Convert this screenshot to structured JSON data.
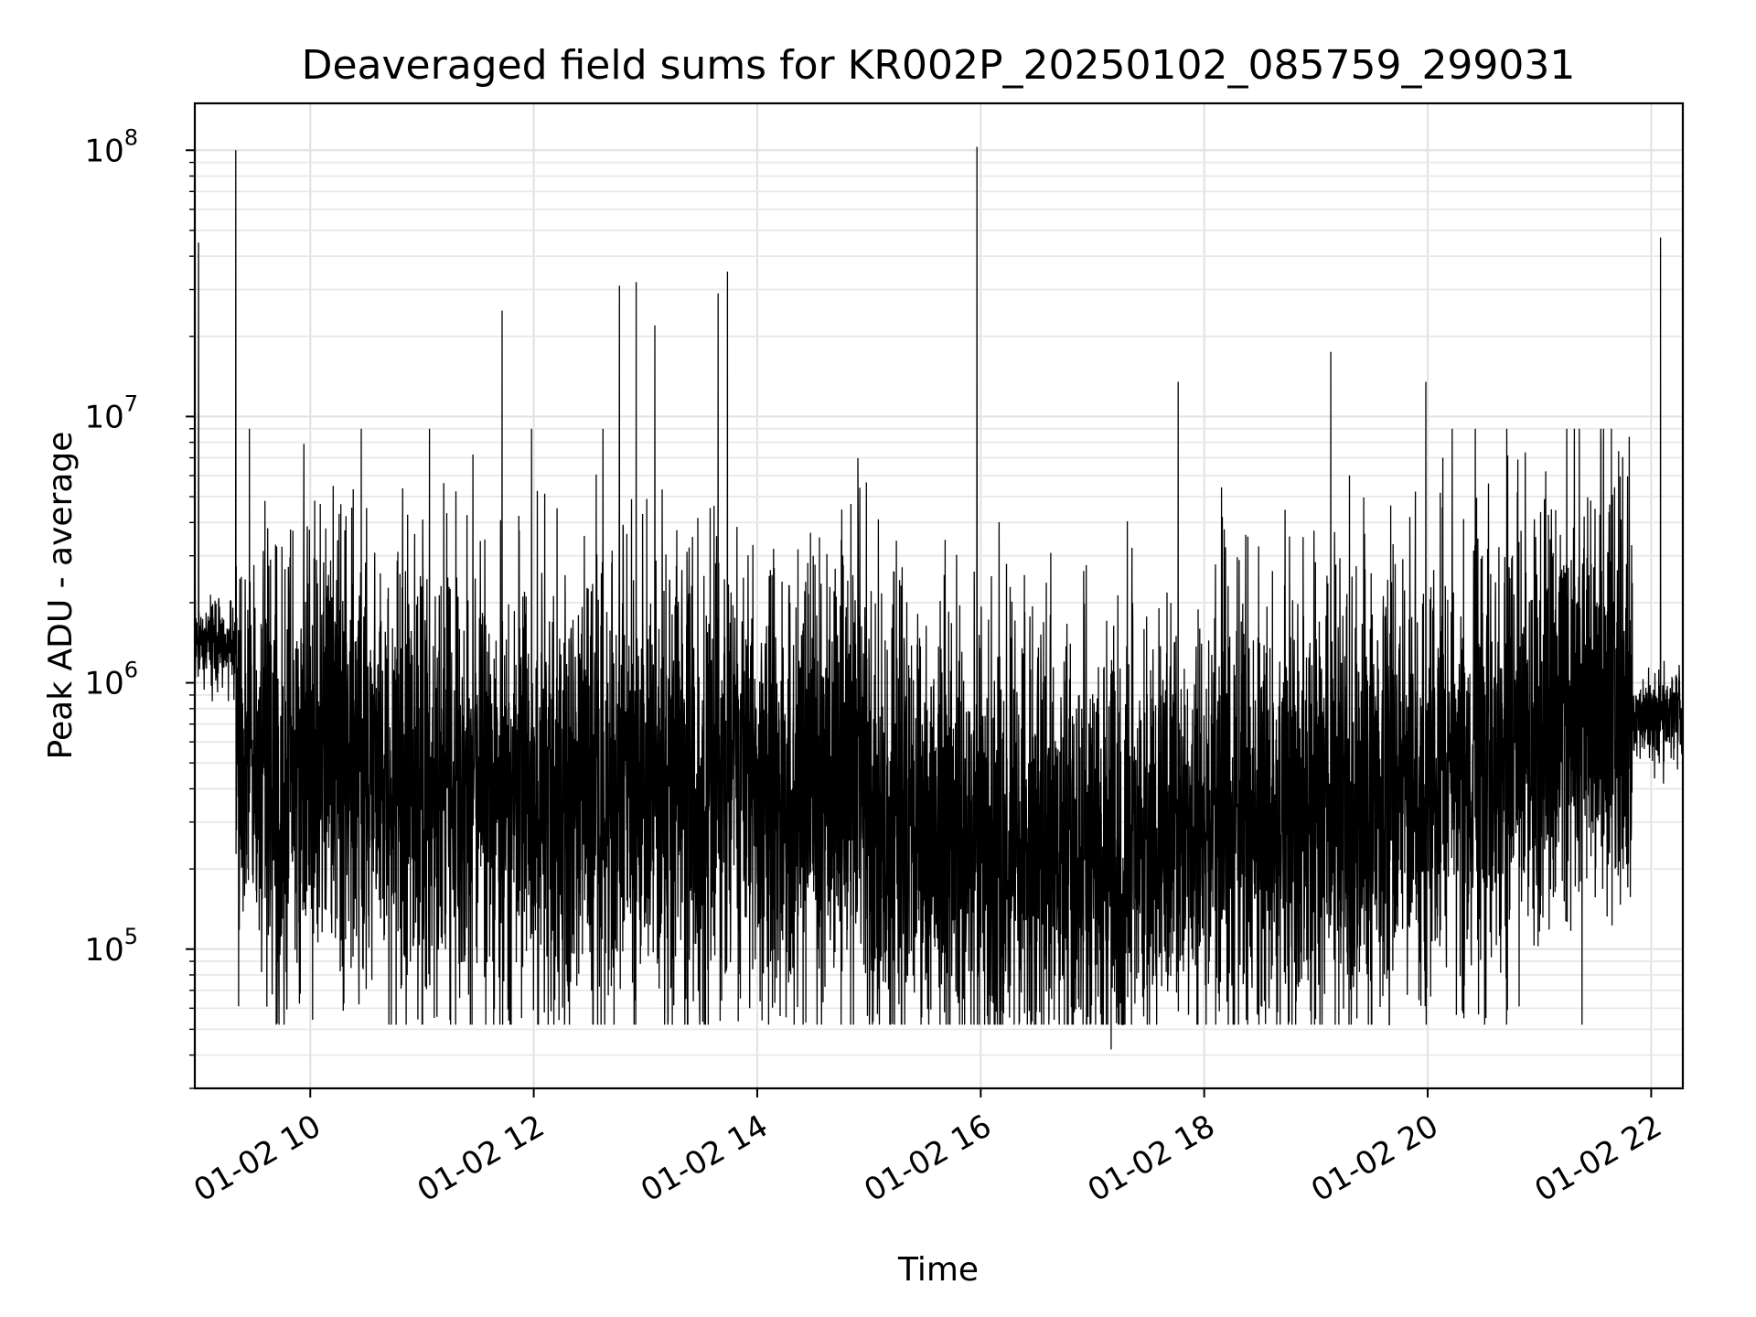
{
  "chart_data": {
    "type": "line",
    "title": "Deaveraged field sums for KR002P_20250102_085759_299031",
    "xlabel": "Time",
    "ylabel": "Peak ADU - average",
    "xscale": "time",
    "yscale": "log",
    "xlim": [
      "2025-01-02 08:58",
      "2025-01-02 22:17"
    ],
    "ylim": [
      30000,
      150000000
    ],
    "grid": true,
    "legend": "none",
    "line_color": "#000000",
    "x_ticks": [
      {
        "value": "2025-01-02 10:00",
        "label": "01-02 10"
      },
      {
        "value": "2025-01-02 12:00",
        "label": "01-02 12"
      },
      {
        "value": "2025-01-02 14:00",
        "label": "01-02 14"
      },
      {
        "value": "2025-01-02 16:00",
        "label": "01-02 16"
      },
      {
        "value": "2025-01-02 18:00",
        "label": "01-02 18"
      },
      {
        "value": "2025-01-02 20:00",
        "label": "01-02 20"
      },
      {
        "value": "2025-01-02 22:00",
        "label": "01-02 22"
      }
    ],
    "y_ticks": [
      {
        "value": 100000,
        "base": "10",
        "exp": "5"
      },
      {
        "value": 1000000,
        "base": "10",
        "exp": "6"
      },
      {
        "value": 10000000,
        "base": "10",
        "exp": "7"
      },
      {
        "value": 100000000,
        "base": "10",
        "exp": "8"
      }
    ],
    "series": [
      {
        "baseline_segments": [
          {
            "x": [
              "2025-01-02 08:58",
              "2025-01-02 09:20"
            ],
            "y": [
              1400000,
              1400000
            ]
          },
          {
            "x": [
              "2025-01-02 09:20",
              "2025-01-02 12:00"
            ],
            "y": [
              500000,
              380000
            ]
          },
          {
            "x": [
              "2025-01-02 12:00",
              "2025-01-02 15:00"
            ],
            "y": [
              380000,
              400000
            ]
          },
          {
            "x": [
              "2025-01-02 15:00",
              "2025-01-02 17:30"
            ],
            "y": [
              260000,
              220000
            ]
          },
          {
            "x": [
              "2025-01-02 17:30",
              "2025-01-02 20:00"
            ],
            "y": [
              250000,
              400000
            ]
          },
          {
            "x": [
              "2025-01-02 20:00",
              "2025-01-02 21:45"
            ],
            "y": [
              400000,
              900000
            ]
          },
          {
            "x": [
              "2025-01-02 21:45",
              "2025-01-02 22:17"
            ],
            "y": [
              700000,
              800000
            ]
          }
        ],
        "peaks": [
          {
            "x": "2025-01-02 09:00",
            "y": 45000000
          },
          {
            "x": "2025-01-02 09:20",
            "y": 100000000
          },
          {
            "x": "2025-01-02 11:43",
            "y": 25000000
          },
          {
            "x": "2025-01-02 12:46",
            "y": 31000000
          },
          {
            "x": "2025-01-02 12:55",
            "y": 32000000
          },
          {
            "x": "2025-01-02 13:05",
            "y": 22000000
          },
          {
            "x": "2025-01-02 13:39",
            "y": 29000000
          },
          {
            "x": "2025-01-02 13:44",
            "y": 35000000
          },
          {
            "x": "2025-01-02 15:58",
            "y": 103000000
          },
          {
            "x": "2025-01-02 17:46",
            "y": 13500000
          },
          {
            "x": "2025-01-02 19:08",
            "y": 17500000
          },
          {
            "x": "2025-01-02 19:59",
            "y": 13500000
          },
          {
            "x": "2025-01-02 22:05",
            "y": 47000000
          }
        ],
        "minimum": {
          "x": "2025-01-02 17:10",
          "y": 42000
        }
      }
    ]
  }
}
